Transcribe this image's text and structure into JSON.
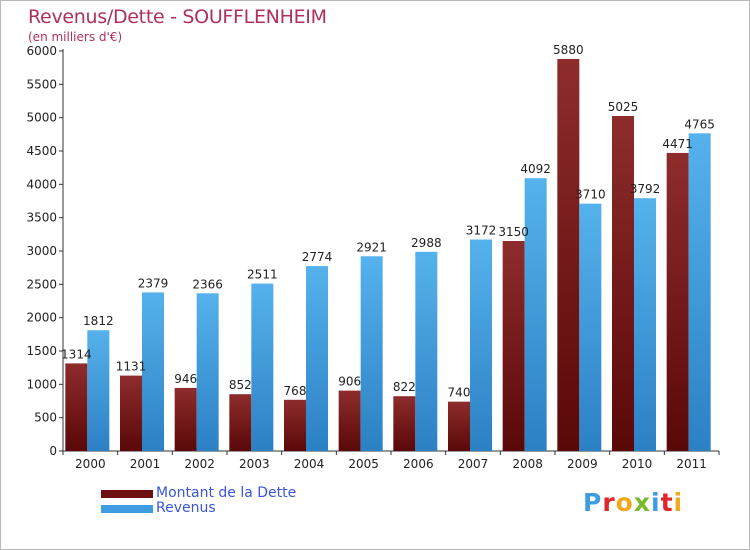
{
  "chart_data": {
    "type": "bar",
    "title": "Revenus/Dette - SOUFFLENHEIM",
    "subtitle": "(en milliers d'€)",
    "categories": [
      "2000",
      "2001",
      "2002",
      "2003",
      "2004",
      "2005",
      "2006",
      "2007",
      "2008",
      "2009",
      "2010",
      "2011"
    ],
    "series": [
      {
        "name": "Montant de la Dette",
        "color": "#7a1616",
        "values": [
          1314,
          1131,
          946,
          852,
          768,
          906,
          822,
          740,
          3150,
          5880,
          5025,
          4471
        ],
        "labels": [
          "1314",
          "1131",
          "946",
          "852",
          "768",
          "906",
          "822",
          "740",
          "3150",
          "5880",
          "5025",
          "4471"
        ]
      },
      {
        "name": "Revenus",
        "color": "#3d9de0",
        "values": [
          1812,
          2379,
          2366,
          2511,
          2774,
          2921,
          2988,
          3172,
          4092,
          3710,
          3792,
          4765
        ],
        "labels": [
          "1812",
          "2379",
          "2366",
          "2511",
          "2774",
          "2921",
          "2988",
          "3172",
          "4092",
          "3710",
          "3792",
          "4765"
        ]
      }
    ],
    "ylim": [
      0,
      6000
    ],
    "yticks": [
      0,
      500,
      1000,
      1500,
      2000,
      2500,
      3000,
      3500,
      4000,
      4500,
      5000,
      5500,
      6000
    ],
    "grid": false,
    "legend_position": "bottom-left"
  },
  "branding": {
    "logo_text": "Proxiti",
    "logo_colors": [
      "#3d9de0",
      "#e0262b",
      "#f2a81d",
      "#7ab929",
      "#3d9de0",
      "#e0262b",
      "#f2a81d"
    ]
  }
}
